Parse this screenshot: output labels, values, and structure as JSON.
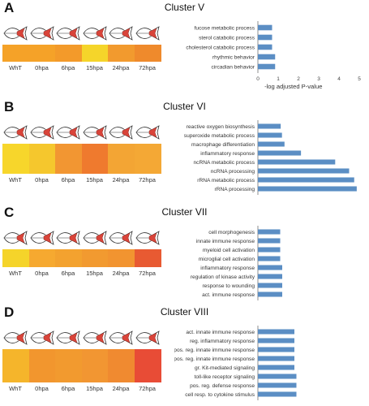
{
  "timepoints": [
    "WhT",
    "0hpa",
    "6hpa",
    "15hpa",
    "24hpa",
    "72hpa"
  ],
  "bar_color": "#5b8ec4",
  "fish_icon": "fish-fin-icon",
  "chart_data": [
    {
      "panel": "A",
      "title": "Cluster V",
      "type": "bar",
      "orientation": "horizontal",
      "categories": [
        "fucose metabolic process",
        "sterol catabolic process",
        "cholesterol catabolic process",
        "rhythmic behavior",
        "circadian behavior"
      ],
      "values": [
        0.7,
        0.7,
        0.7,
        0.85,
        0.85
      ],
      "xlabel": "-log adjusted P-value",
      "xlim": [
        0,
        5
      ],
      "xticks": [
        "0",
        "1",
        "2",
        "3",
        "4",
        "5"
      ],
      "heatmap": [
        [
          "#f5a228",
          "#f5a228",
          "#f39a2a",
          "#f5d52a",
          "#f29a2e",
          "#ef8a2c"
        ]
      ]
    },
    {
      "panel": "B",
      "title": "Cluster VI",
      "type": "bar",
      "orientation": "horizontal",
      "categories": [
        "reactive oxygen biosynthesis",
        "superoxide metabolic process",
        "macrophage differentiation",
        "inflammatory response",
        "ncRNA metabolic process",
        "ncRNA processing",
        "rRNA metabolic process",
        "rRNA processing"
      ],
      "values": [
        1.8,
        1.9,
        2.1,
        3.4,
        6.1,
        7.2,
        7.6,
        7.8
      ],
      "xlabel": "-log adjusted P-value",
      "xlim": [
        0,
        8
      ],
      "xticks": [
        "0",
        "1",
        "2",
        "3",
        "4",
        "5",
        "6",
        "7",
        "8"
      ],
      "heatmap": [
        [
          "#f7d62b",
          "#f5c72d",
          "#f29632",
          "#ef7a2e",
          "#f3a534",
          "#f4a835"
        ]
      ]
    },
    {
      "panel": "C",
      "title": "Cluster VII",
      "type": "bar",
      "orientation": "horizontal",
      "categories": [
        "cell morphogenesis",
        "innate immune response",
        "myeloid cell activation",
        "microglial cell activation",
        "inflammatory response",
        "regulation of kinase activity",
        "response to wounding",
        "act. immune response"
      ],
      "values": [
        1.1,
        1.1,
        1.1,
        1.1,
        1.2,
        1.2,
        1.2,
        1.2
      ],
      "xlabel": "-log adjusted P-value",
      "xlim": [
        0,
        5
      ],
      "xticks": [
        "0",
        "1",
        "2",
        "3",
        "4",
        "5"
      ],
      "heatmap": [
        [
          "#f5d42a",
          "#f6a930",
          "#f3a22f",
          "#f29a30",
          "#f29430",
          "#e85a32"
        ]
      ]
    },
    {
      "panel": "D",
      "title": "Cluster VIII",
      "type": "bar",
      "orientation": "horizontal",
      "categories": [
        "act. innate immune response",
        "reg. inflammatory response",
        "pos. reg. innate immune response",
        "pos. reg. innate immune response",
        "gr. Kit-mediated signaling",
        "toll-like receptor signaling",
        "pos. reg. defense response",
        "cell resp. to cytokine stimulus"
      ],
      "values": [
        1.8,
        1.8,
        1.8,
        1.8,
        1.8,
        1.9,
        1.9,
        1.9
      ],
      "xlabel": "-log adjusted P-value",
      "xlim": [
        0,
        5
      ],
      "xticks": [
        "0",
        "1",
        "2",
        "3",
        "4",
        "5"
      ],
      "heatmap": [
        [
          "#f5b52b",
          "#f2962e",
          "#f29a2f",
          "#f29632",
          "#f08a30",
          "#e84c36"
        ]
      ]
    }
  ]
}
